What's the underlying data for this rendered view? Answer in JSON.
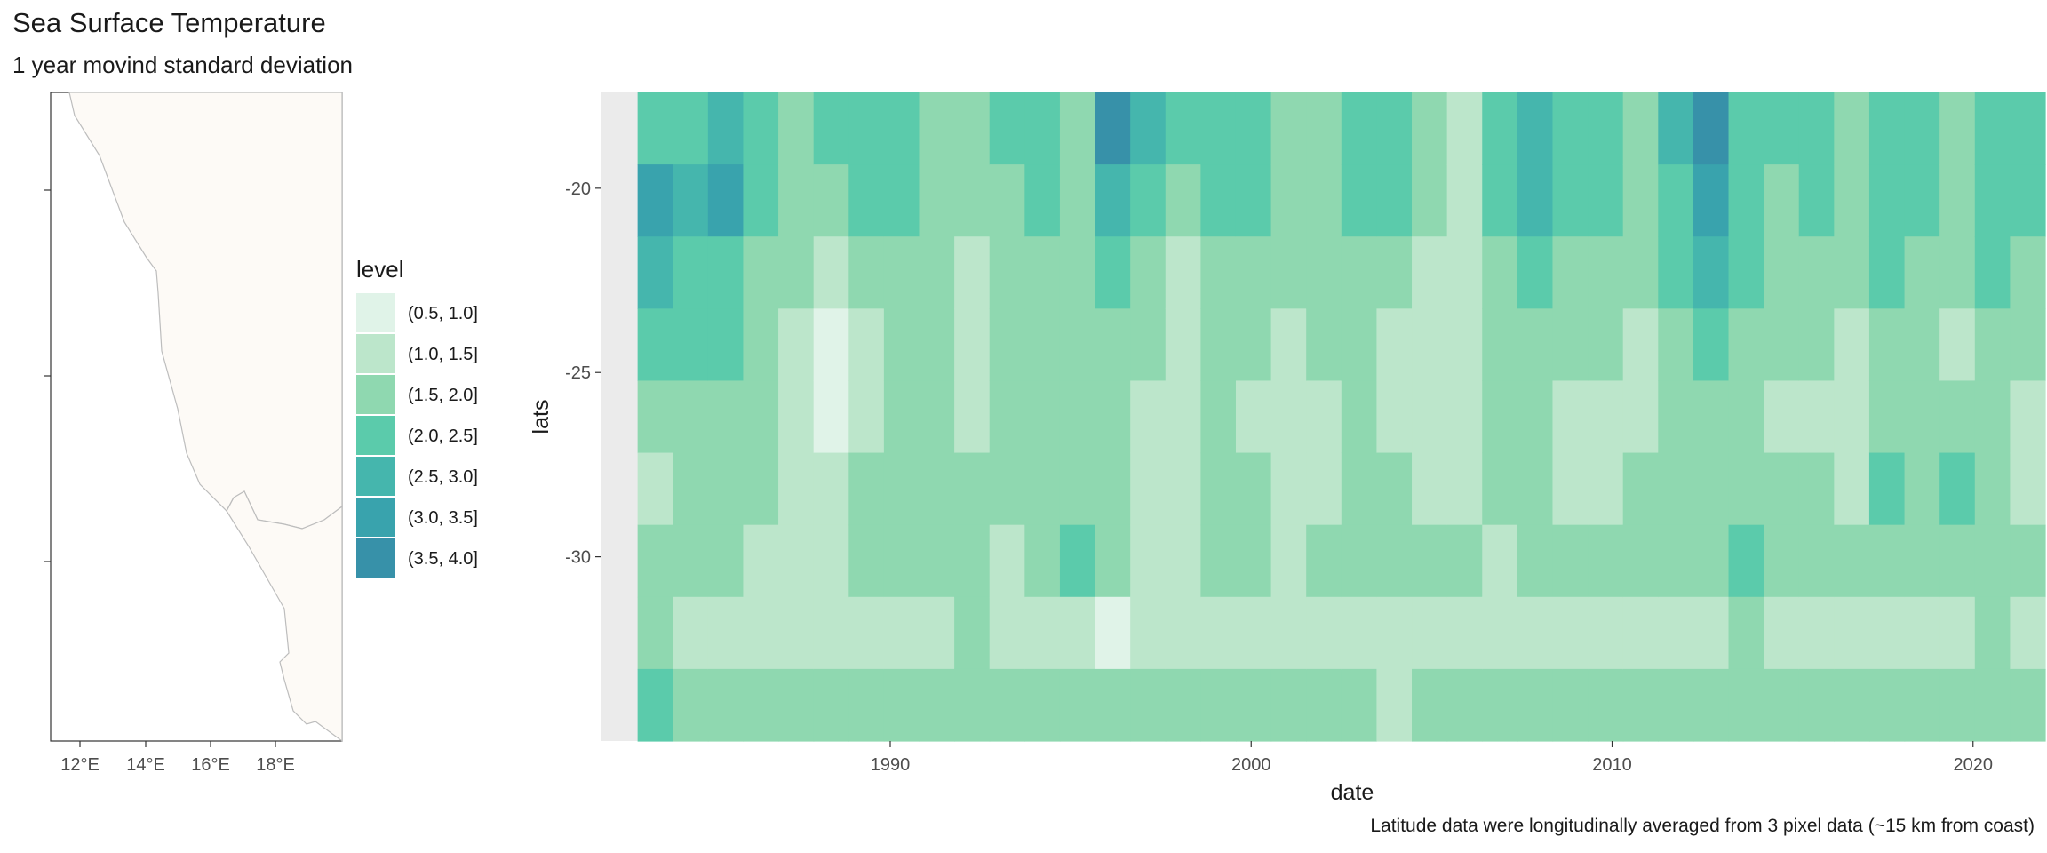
{
  "title": "Sea Surface Temperature",
  "subtitle": "1 year movind standard deviation",
  "caption": "Latitude data were longitudinally averaged from 3 pixel data (~15 km from coast)",
  "map": {
    "x_ticks": [
      "12°E",
      "14°E",
      "16°E",
      "18°E"
    ],
    "land_color": "#fdfaf6",
    "border_color": "#bdbdbd"
  },
  "legend": {
    "title": "level",
    "entries": [
      {
        "label": "(0.5, 1.0]",
        "color": "#e0f3e8"
      },
      {
        "label": "(1.0, 1.5]",
        "color": "#bce6cb"
      },
      {
        "label": "(1.5, 2.0]",
        "color": "#8fd8b0"
      },
      {
        "label": "(2.0, 2.5]",
        "color": "#5bcbab"
      },
      {
        "label": "(2.5, 3.0]",
        "color": "#45b6ad"
      },
      {
        "label": "(3.0, 3.5]",
        "color": "#39a3ad"
      },
      {
        "label": "(3.5, 4.0]",
        "color": "#3791a9"
      }
    ]
  },
  "chart_data": {
    "type": "heatmap",
    "title": "Sea Surface Temperature",
    "subtitle": "1 year movind standard deviation",
    "xlabel": "date",
    "ylabel": "lats",
    "x_ticks": [
      1990,
      2000,
      2010,
      2020
    ],
    "y_ticks": [
      -20,
      -25,
      -30
    ],
    "xlim": [
      1982,
      2022
    ],
    "ylim": [
      -35,
      -17.4
    ],
    "levels": [
      "(0.5, 1.0]",
      "(1.0, 1.5]",
      "(1.5, 2.0]",
      "(2.0, 2.5]",
      "(2.5, 3.0]",
      "(3.0, 3.5]",
      "(3.5, 4.0]"
    ],
    "years": [
      1982,
      1983,
      1984,
      1985,
      1986,
      1987,
      1988,
      1989,
      1990,
      1991,
      1992,
      1993,
      1994,
      1995,
      1996,
      1997,
      1998,
      1999,
      2000,
      2001,
      2002,
      2003,
      2004,
      2005,
      2006,
      2007,
      2008,
      2009,
      2010,
      2011,
      2012,
      2013,
      2014,
      2015,
      2016,
      2017,
      2018,
      2019,
      2020,
      2021
    ],
    "lat_bands": [
      -18,
      -20,
      -22,
      -24,
      -26,
      -28,
      -30,
      -32,
      -34
    ],
    "level_index": [
      [
        3,
        5,
        4,
        3,
        2,
        1,
        2,
        2,
        3
      ],
      [
        3,
        4,
        3,
        3,
        2,
        2,
        2,
        1,
        2
      ],
      [
        4,
        5,
        3,
        3,
        2,
        2,
        2,
        1,
        2
      ],
      [
        3,
        3,
        2,
        2,
        2,
        2,
        1,
        1,
        2
      ],
      [
        2,
        2,
        2,
        1,
        1,
        1,
        1,
        1,
        2
      ],
      [
        3,
        2,
        1,
        0,
        0,
        1,
        1,
        1,
        2
      ],
      [
        3,
        3,
        2,
        1,
        1,
        2,
        2,
        1,
        2
      ],
      [
        3,
        3,
        2,
        2,
        2,
        2,
        2,
        1,
        2
      ],
      [
        2,
        2,
        2,
        2,
        2,
        2,
        2,
        1,
        2
      ],
      [
        2,
        2,
        1,
        1,
        1,
        2,
        2,
        2,
        2
      ],
      [
        3,
        2,
        2,
        2,
        2,
        2,
        1,
        1,
        2
      ],
      [
        3,
        3,
        2,
        2,
        2,
        2,
        2,
        1,
        2
      ],
      [
        2,
        2,
        2,
        2,
        2,
        2,
        3,
        1,
        2
      ],
      [
        6,
        4,
        3,
        2,
        2,
        2,
        2,
        0,
        2
      ],
      [
        4,
        3,
        2,
        2,
        1,
        1,
        1,
        1,
        2
      ],
      [
        3,
        2,
        1,
        1,
        1,
        1,
        1,
        1,
        2
      ],
      [
        3,
        3,
        2,
        2,
        2,
        2,
        2,
        1,
        2
      ],
      [
        3,
        3,
        2,
        2,
        1,
        2,
        2,
        1,
        2
      ],
      [
        2,
        2,
        2,
        1,
        1,
        1,
        1,
        1,
        2
      ],
      [
        2,
        2,
        2,
        2,
        1,
        1,
        2,
        1,
        2
      ],
      [
        3,
        3,
        2,
        2,
        2,
        2,
        2,
        1,
        2
      ],
      [
        3,
        3,
        2,
        1,
        1,
        2,
        2,
        1,
        1
      ],
      [
        2,
        2,
        1,
        1,
        1,
        1,
        2,
        1,
        2
      ],
      [
        1,
        1,
        1,
        1,
        1,
        1,
        2,
        1,
        2
      ],
      [
        3,
        3,
        2,
        2,
        2,
        2,
        1,
        1,
        2
      ],
      [
        4,
        4,
        3,
        2,
        2,
        2,
        2,
        1,
        2
      ],
      [
        3,
        3,
        2,
        2,
        1,
        1,
        2,
        1,
        2
      ],
      [
        3,
        3,
        2,
        2,
        1,
        1,
        2,
        1,
        2
      ],
      [
        2,
        2,
        2,
        1,
        1,
        2,
        2,
        1,
        2
      ],
      [
        4,
        3,
        3,
        2,
        2,
        2,
        2,
        1,
        2
      ],
      [
        6,
        5,
        4,
        3,
        2,
        2,
        2,
        1,
        2
      ],
      [
        3,
        3,
        3,
        2,
        2,
        2,
        3,
        2,
        2
      ],
      [
        3,
        2,
        2,
        2,
        1,
        2,
        2,
        1,
        2
      ],
      [
        3,
        3,
        2,
        2,
        1,
        2,
        2,
        1,
        2
      ],
      [
        2,
        2,
        2,
        1,
        1,
        1,
        2,
        1,
        2
      ],
      [
        3,
        3,
        3,
        2,
        2,
        3,
        2,
        1,
        2
      ],
      [
        3,
        3,
        2,
        2,
        2,
        2,
        2,
        1,
        2
      ],
      [
        2,
        2,
        2,
        1,
        2,
        3,
        2,
        1,
        2
      ],
      [
        3,
        3,
        3,
        2,
        2,
        2,
        2,
        2,
        2
      ],
      [
        3,
        3,
        2,
        2,
        1,
        1,
        2,
        1,
        2
      ]
    ]
  }
}
